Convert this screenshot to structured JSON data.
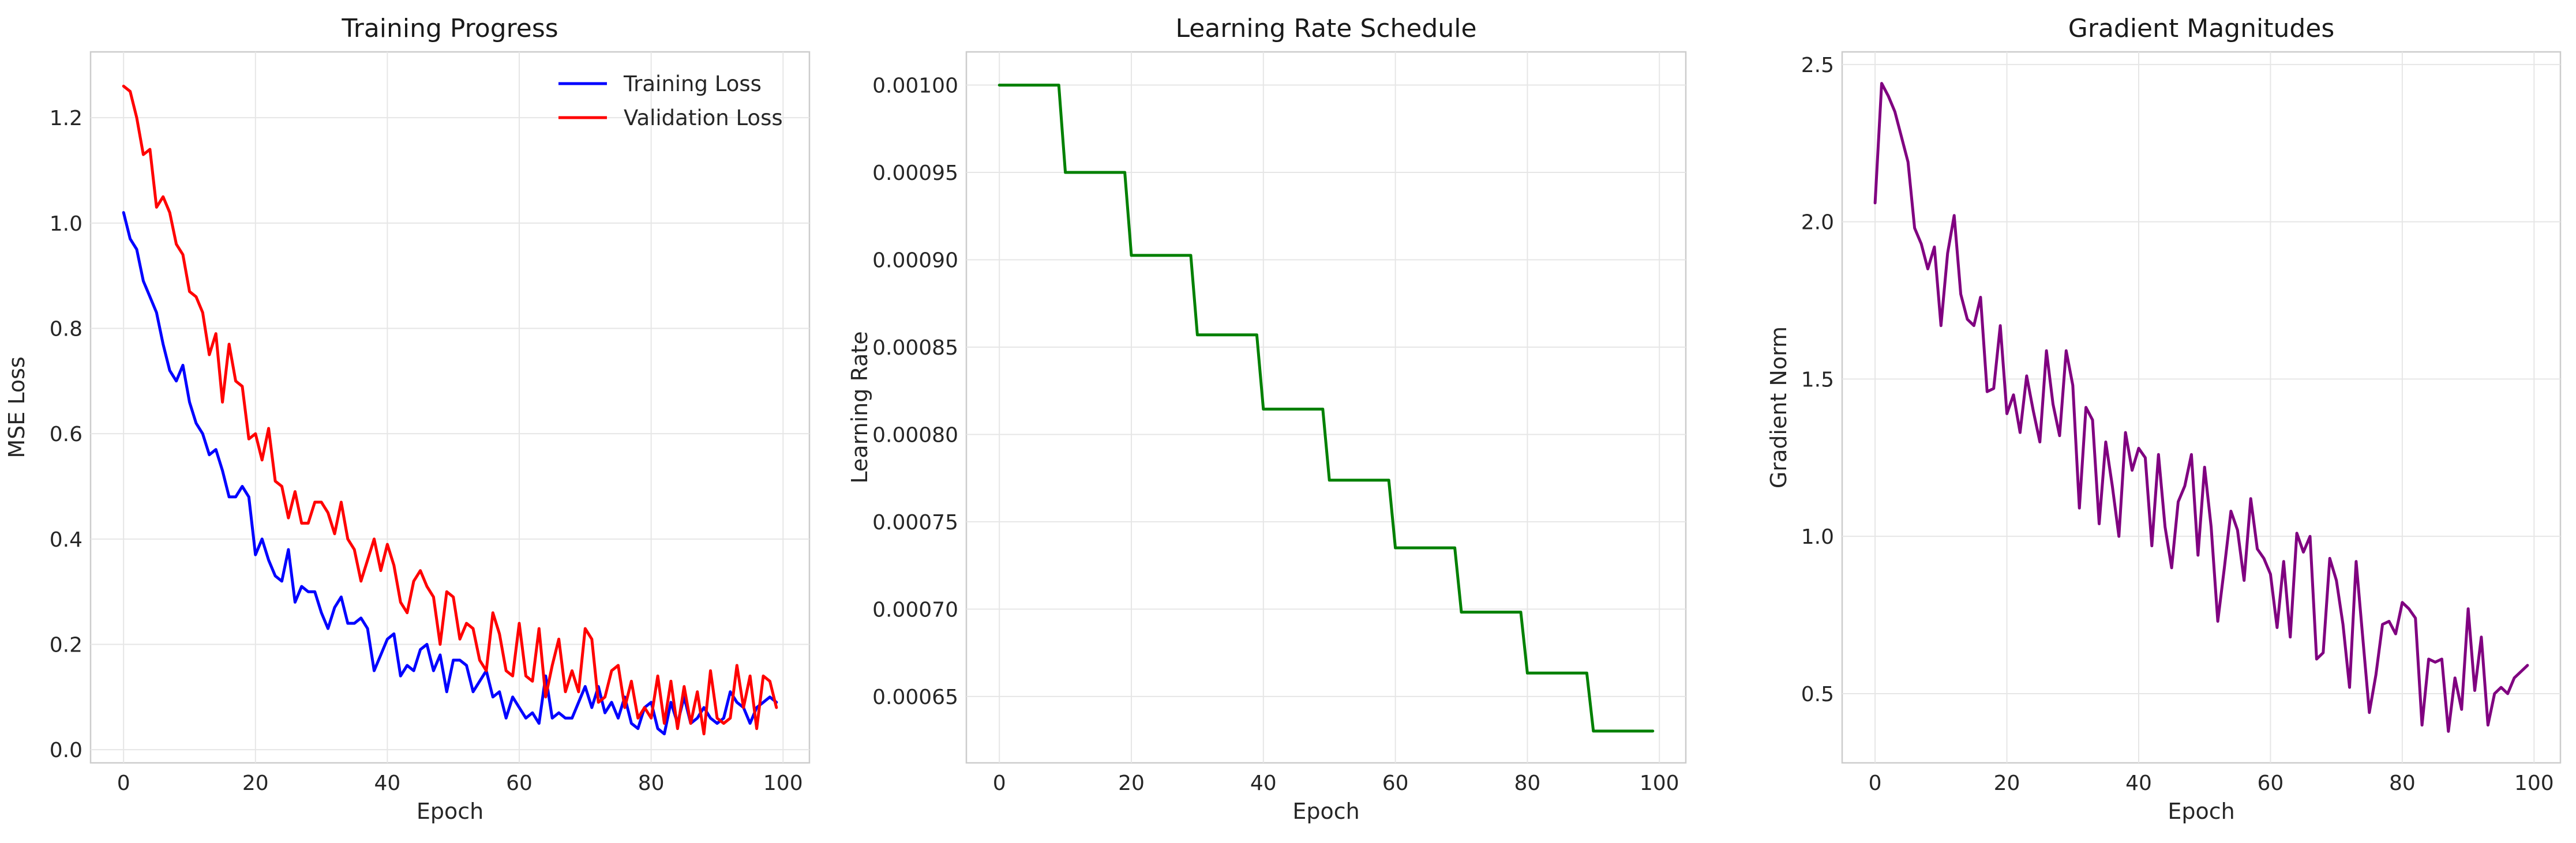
{
  "chart_data": [
    {
      "type": "line",
      "title": "Training Progress",
      "xlabel": "Epoch",
      "ylabel": "MSE Loss",
      "xlim": [
        -5,
        104
      ],
      "ylim": [
        -0.025,
        1.325
      ],
      "xticks": [
        0,
        20,
        40,
        60,
        80,
        100
      ],
      "xtick_labels": [
        "0",
        "20",
        "40",
        "60",
        "80",
        "100"
      ],
      "yticks": [
        0.0,
        0.2,
        0.4,
        0.6,
        0.8,
        1.0,
        1.2
      ],
      "ytick_labels": [
        "0.0",
        "0.2",
        "0.4",
        "0.6",
        "0.8",
        "1.0",
        "1.2"
      ],
      "grid": true,
      "legend": "top-right",
      "series": [
        {
          "name": "Training Loss",
          "color": "#0000ff",
          "x": [
            0,
            1,
            2,
            3,
            4,
            5,
            6,
            7,
            8,
            9,
            10,
            11,
            12,
            13,
            14,
            15,
            16,
            17,
            18,
            19,
            20,
            21,
            22,
            23,
            24,
            25,
            26,
            27,
            28,
            29,
            30,
            31,
            32,
            33,
            34,
            35,
            36,
            37,
            38,
            39,
            40,
            41,
            42,
            43,
            44,
            45,
            46,
            47,
            48,
            49,
            50,
            51,
            52,
            53,
            54,
            55,
            56,
            57,
            58,
            59,
            60,
            61,
            62,
            63,
            64,
            65,
            66,
            67,
            68,
            69,
            70,
            71,
            72,
            73,
            74,
            75,
            76,
            77,
            78,
            79,
            80,
            81,
            82,
            83,
            84,
            85,
            86,
            87,
            88,
            89,
            90,
            91,
            92,
            93,
            94,
            95,
            96,
            97,
            98,
            99
          ],
          "y": [
            1.02,
            0.97,
            0.95,
            0.89,
            0.86,
            0.83,
            0.77,
            0.72,
            0.7,
            0.73,
            0.66,
            0.62,
            0.6,
            0.56,
            0.57,
            0.53,
            0.48,
            0.48,
            0.5,
            0.48,
            0.37,
            0.4,
            0.36,
            0.33,
            0.32,
            0.38,
            0.28,
            0.31,
            0.3,
            0.3,
            0.26,
            0.23,
            0.27,
            0.29,
            0.24,
            0.24,
            0.25,
            0.23,
            0.15,
            0.18,
            0.21,
            0.22,
            0.14,
            0.16,
            0.15,
            0.19,
            0.2,
            0.15,
            0.18,
            0.11,
            0.17,
            0.17,
            0.16,
            0.11,
            0.13,
            0.15,
            0.1,
            0.11,
            0.06,
            0.1,
            0.08,
            0.06,
            0.07,
            0.05,
            0.14,
            0.06,
            0.07,
            0.06,
            0.06,
            0.09,
            0.12,
            0.08,
            0.12,
            0.07,
            0.09,
            0.06,
            0.1,
            0.05,
            0.04,
            0.08,
            0.09,
            0.04,
            0.03,
            0.09,
            0.05,
            0.1,
            0.05,
            0.06,
            0.08,
            0.06,
            0.05,
            0.06,
            0.11,
            0.09,
            0.08,
            0.05,
            0.08,
            0.09,
            0.1,
            0.09
          ]
        },
        {
          "name": "Validation Loss",
          "color": "#ff0000",
          "x": [
            0,
            1,
            2,
            3,
            4,
            5,
            6,
            7,
            8,
            9,
            10,
            11,
            12,
            13,
            14,
            15,
            16,
            17,
            18,
            19,
            20,
            21,
            22,
            23,
            24,
            25,
            26,
            27,
            28,
            29,
            30,
            31,
            32,
            33,
            34,
            35,
            36,
            37,
            38,
            39,
            40,
            41,
            42,
            43,
            44,
            45,
            46,
            47,
            48,
            49,
            50,
            51,
            52,
            53,
            54,
            55,
            56,
            57,
            58,
            59,
            60,
            61,
            62,
            63,
            64,
            65,
            66,
            67,
            68,
            69,
            70,
            71,
            72,
            73,
            74,
            75,
            76,
            77,
            78,
            79,
            80,
            81,
            82,
            83,
            84,
            85,
            86,
            87,
            88,
            89,
            90,
            91,
            92,
            93,
            94,
            95,
            96,
            97,
            98,
            99
          ],
          "y": [
            1.26,
            1.25,
            1.2,
            1.13,
            1.14,
            1.03,
            1.05,
            1.02,
            0.96,
            0.94,
            0.87,
            0.86,
            0.83,
            0.75,
            0.79,
            0.66,
            0.77,
            0.7,
            0.69,
            0.59,
            0.6,
            0.55,
            0.61,
            0.51,
            0.5,
            0.44,
            0.49,
            0.43,
            0.43,
            0.47,
            0.47,
            0.45,
            0.41,
            0.47,
            0.4,
            0.38,
            0.32,
            0.36,
            0.4,
            0.34,
            0.39,
            0.35,
            0.28,
            0.26,
            0.32,
            0.34,
            0.31,
            0.29,
            0.2,
            0.3,
            0.29,
            0.21,
            0.24,
            0.23,
            0.17,
            0.15,
            0.26,
            0.22,
            0.15,
            0.14,
            0.24,
            0.14,
            0.13,
            0.23,
            0.1,
            0.16,
            0.21,
            0.11,
            0.15,
            0.11,
            0.23,
            0.21,
            0.09,
            0.1,
            0.15,
            0.16,
            0.08,
            0.13,
            0.06,
            0.08,
            0.06,
            0.14,
            0.05,
            0.13,
            0.04,
            0.12,
            0.05,
            0.11,
            0.03,
            0.15,
            0.06,
            0.05,
            0.06,
            0.16,
            0.08,
            0.14,
            0.04,
            0.14,
            0.13,
            0.08
          ]
        }
      ]
    },
    {
      "type": "line",
      "title": "Learning Rate Schedule",
      "xlabel": "Epoch",
      "ylabel": "Learning Rate",
      "xlim": [
        -5,
        104
      ],
      "ylim": [
        0.000612,
        0.001019
      ],
      "xticks": [
        0,
        20,
        40,
        60,
        80,
        100
      ],
      "xtick_labels": [
        "0",
        "20",
        "40",
        "60",
        "80",
        "100"
      ],
      "yticks": [
        0.00065,
        0.0007,
        0.00075,
        0.0008,
        0.00085,
        0.0009,
        0.00095,
        0.001
      ],
      "ytick_labels": [
        "0.00065",
        "0.00070",
        "0.00075",
        "0.00080",
        "0.00085",
        "0.00090",
        "0.00095",
        "0.00100"
      ],
      "grid": true,
      "series": [
        {
          "color": "#008000",
          "x": [
            0,
            9,
            10,
            19,
            20,
            29,
            30,
            39,
            40,
            49,
            50,
            59,
            60,
            69,
            70,
            79,
            80,
            89,
            90,
            99
          ],
          "y": [
            0.001,
            0.001,
            0.00095,
            0.00095,
            0.0009025,
            0.0009025,
            0.000857,
            0.000857,
            0.0008145,
            0.0008145,
            0.0007738,
            0.0007738,
            0.0007351,
            0.0007351,
            0.0006983,
            0.0006983,
            0.0006634,
            0.0006634,
            0.0006302,
            0.0006302
          ]
        }
      ]
    },
    {
      "type": "line",
      "title": "Gradient Magnitudes",
      "xlabel": "Epoch",
      "ylabel": "Gradient Norm",
      "xlim": [
        -5,
        104
      ],
      "ylim": [
        0.28,
        2.54
      ],
      "xticks": [
        0,
        20,
        40,
        60,
        80,
        100
      ],
      "xtick_labels": [
        "0",
        "20",
        "40",
        "60",
        "80",
        "100"
      ],
      "yticks": [
        0.5,
        1.0,
        1.5,
        2.0,
        2.5
      ],
      "ytick_labels": [
        "0.5",
        "1.0",
        "1.5",
        "2.0",
        "2.5"
      ],
      "grid": true,
      "series": [
        {
          "color": "#800080",
          "x": [
            0,
            1,
            2,
            3,
            4,
            5,
            6,
            7,
            8,
            9,
            10,
            11,
            12,
            13,
            14,
            15,
            16,
            17,
            18,
            19,
            20,
            21,
            22,
            23,
            24,
            25,
            26,
            27,
            28,
            29,
            30,
            31,
            32,
            33,
            34,
            35,
            36,
            37,
            38,
            39,
            40,
            41,
            42,
            43,
            44,
            45,
            46,
            47,
            48,
            49,
            50,
            51,
            52,
            53,
            54,
            55,
            56,
            57,
            58,
            59,
            60,
            61,
            62,
            63,
            64,
            65,
            66,
            67,
            68,
            69,
            70,
            71,
            72,
            73,
            74,
            75,
            76,
            77,
            78,
            79,
            80,
            81,
            82,
            83,
            84,
            85,
            86,
            87,
            88,
            89,
            90,
            91,
            92,
            93,
            94,
            95,
            96,
            97,
            98,
            99
          ],
          "y": [
            2.06,
            2.44,
            2.4,
            2.35,
            2.27,
            2.19,
            1.98,
            1.93,
            1.85,
            1.92,
            1.67,
            1.9,
            2.02,
            1.77,
            1.69,
            1.67,
            1.76,
            1.46,
            1.47,
            1.67,
            1.39,
            1.45,
            1.33,
            1.51,
            1.4,
            1.3,
            1.59,
            1.42,
            1.32,
            1.59,
            1.48,
            1.09,
            1.41,
            1.37,
            1.04,
            1.3,
            1.16,
            1.0,
            1.33,
            1.21,
            1.28,
            1.25,
            0.97,
            1.26,
            1.03,
            0.9,
            1.11,
            1.16,
            1.26,
            0.94,
            1.22,
            1.03,
            0.73,
            0.9,
            1.08,
            1.02,
            0.86,
            1.12,
            0.96,
            0.93,
            0.88,
            0.71,
            0.92,
            0.68,
            1.01,
            0.95,
            1.0,
            0.61,
            0.63,
            0.93,
            0.86,
            0.72,
            0.52,
            0.92,
            0.68,
            0.44,
            0.56,
            0.72,
            0.73,
            0.69,
            0.79,
            0.77,
            0.74,
            0.4,
            0.61,
            0.6,
            0.61,
            0.38,
            0.55,
            0.45,
            0.77,
            0.51,
            0.68,
            0.4,
            0.5,
            0.52,
            0.5,
            0.55,
            0.57,
            0.59
          ]
        }
      ]
    }
  ]
}
